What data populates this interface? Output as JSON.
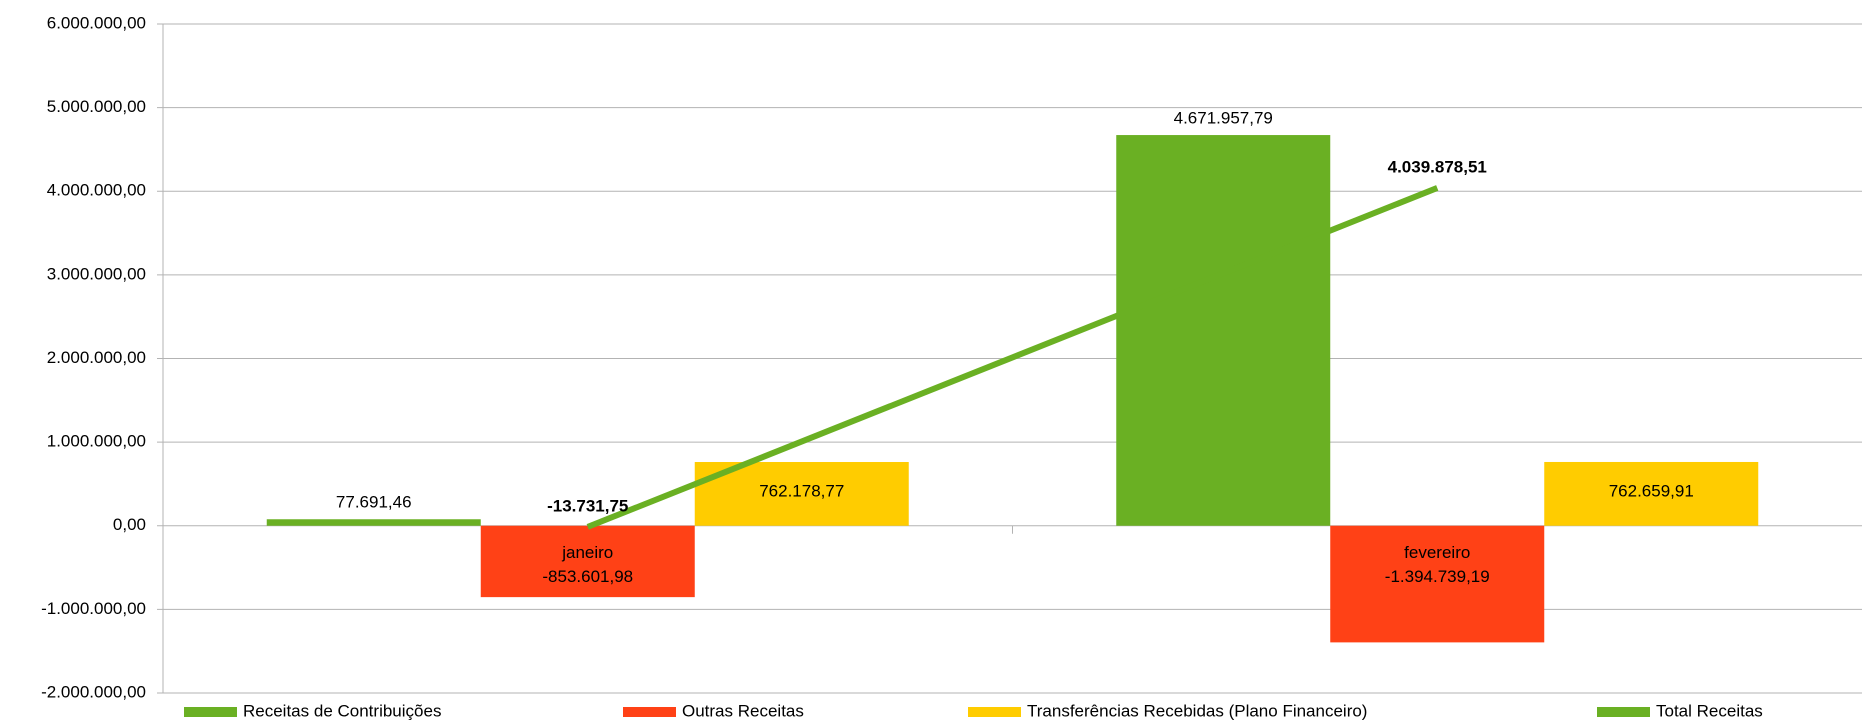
{
  "chart_data": {
    "type": "bar",
    "categories": [
      "janeiro",
      "fevereiro"
    ],
    "series": [
      {
        "name": "Receitas de Contribuições",
        "color": "#6ab023",
        "values": [
          77691.46,
          4671957.79
        ],
        "value_labels": [
          "77.691,46",
          "4.671.957,79"
        ]
      },
      {
        "name": "Outras Receitas",
        "color": "#ff4116",
        "values": [
          -853601.98,
          -1394739.19
        ],
        "value_labels": [
          "-853.601,98",
          "-1.394.739,19"
        ]
      },
      {
        "name": "Transferências Recebidas (Plano Financeiro)",
        "color": "#ffcc00",
        "values": [
          762178.77,
          762659.91
        ],
        "value_labels": [
          "762.178,77",
          "762.659,91"
        ]
      },
      {
        "name": "Total Receitas",
        "color": "#6ab023",
        "type": "line",
        "values": [
          -13731.75,
          4039878.51
        ],
        "value_labels": [
          "-13.731,75",
          "4.039.878,51"
        ]
      }
    ],
    "ylim": [
      -2000000,
      6000000
    ],
    "yticks": [
      {
        "value": -2000000,
        "label": "-2.000.000,00"
      },
      {
        "value": -1000000,
        "label": "-1.000.000,00"
      },
      {
        "value": 0,
        "label": "0,00"
      },
      {
        "value": 1000000,
        "label": "1.000.000,00"
      },
      {
        "value": 2000000,
        "label": "2.000.000,00"
      },
      {
        "value": 3000000,
        "label": "3.000.000,00"
      },
      {
        "value": 4000000,
        "label": "4.000.000,00"
      },
      {
        "value": 5000000,
        "label": "5.000.000,00"
      },
      {
        "value": 6000000,
        "label": "6.000.000,00"
      }
    ],
    "grid": true,
    "legend": "bottom"
  }
}
